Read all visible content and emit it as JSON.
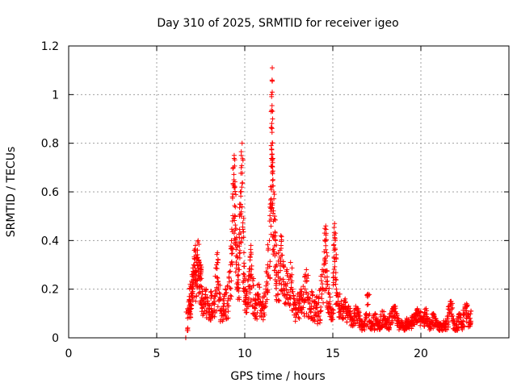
{
  "chart_data": {
    "type": "scatter",
    "title": "Day 310 of 2025, SRMTID for receiver igeo",
    "xlabel": "GPS time / hours",
    "ylabel": "SRMTID / TECUs",
    "xlim": [
      0,
      25
    ],
    "ylim": [
      0,
      1.2
    ],
    "xticks": [
      0,
      5,
      10,
      15,
      20
    ],
    "yticks": [
      0,
      0.2,
      0.4,
      0.6,
      0.8,
      1,
      1.2
    ],
    "xtick_labels": [
      "0",
      "5",
      "10",
      "15",
      "20"
    ],
    "ytick_labels": [
      "0",
      "0.2",
      "0.4",
      "0.6",
      "0.8",
      "1",
      "1.2"
    ],
    "grid": true,
    "series": [
      {
        "name": "SRMTID",
        "color": "#ff0000",
        "marker": "plus",
        "x_range": [
          6.6,
          22.9
        ],
        "points": [
          [
            6.65,
            0.0
          ],
          [
            6.65,
            0.0
          ],
          [
            6.8,
            0.12
          ],
          [
            6.85,
            0.17
          ],
          [
            6.9,
            0.22
          ],
          [
            6.95,
            0.15
          ],
          [
            7.0,
            0.26
          ],
          [
            7.05,
            0.19
          ],
          [
            7.1,
            0.3
          ],
          [
            7.15,
            0.36
          ],
          [
            7.2,
            0.38
          ],
          [
            7.25,
            0.27
          ],
          [
            7.3,
            0.33
          ],
          [
            7.35,
            0.4
          ],
          [
            7.4,
            0.32
          ],
          [
            7.45,
            0.25
          ],
          [
            7.5,
            0.3
          ],
          [
            7.55,
            0.21
          ],
          [
            7.6,
            0.18
          ],
          [
            7.7,
            0.16
          ],
          [
            7.8,
            0.2
          ],
          [
            7.9,
            0.15
          ],
          [
            8.0,
            0.12
          ],
          [
            8.1,
            0.19
          ],
          [
            8.2,
            0.14
          ],
          [
            8.3,
            0.17
          ],
          [
            8.4,
            0.3
          ],
          [
            8.45,
            0.35
          ],
          [
            8.5,
            0.22
          ],
          [
            8.6,
            0.18
          ],
          [
            8.7,
            0.12
          ],
          [
            8.8,
            0.16
          ],
          [
            8.9,
            0.2
          ],
          [
            9.0,
            0.14
          ],
          [
            9.1,
            0.25
          ],
          [
            9.2,
            0.3
          ],
          [
            9.25,
            0.4
          ],
          [
            9.3,
            0.58
          ],
          [
            9.35,
            0.7
          ],
          [
            9.4,
            0.75
          ],
          [
            9.45,
            0.62
          ],
          [
            9.5,
            0.45
          ],
          [
            9.55,
            0.38
          ],
          [
            9.6,
            0.33
          ],
          [
            9.65,
            0.28
          ],
          [
            9.7,
            0.5
          ],
          [
            9.75,
            0.6
          ],
          [
            9.8,
            0.7
          ],
          [
            9.85,
            0.8
          ],
          [
            9.9,
            0.73
          ],
          [
            9.95,
            0.35
          ],
          [
            10.0,
            0.25
          ],
          [
            10.05,
            0.2
          ],
          [
            10.1,
            0.18
          ],
          [
            10.2,
            0.24
          ],
          [
            10.3,
            0.32
          ],
          [
            10.35,
            0.38
          ],
          [
            10.4,
            0.25
          ],
          [
            10.5,
            0.16
          ],
          [
            10.6,
            0.12
          ],
          [
            10.7,
            0.18
          ],
          [
            10.8,
            0.22
          ],
          [
            10.9,
            0.15
          ],
          [
            11.0,
            0.12
          ],
          [
            11.1,
            0.17
          ],
          [
            11.2,
            0.2
          ],
          [
            11.3,
            0.3
          ],
          [
            11.4,
            0.4
          ],
          [
            11.45,
            0.55
          ],
          [
            11.5,
            0.79
          ],
          [
            11.5,
            0.93
          ],
          [
            11.52,
            1.0
          ],
          [
            11.55,
            1.06
          ],
          [
            11.56,
            1.11
          ],
          [
            11.58,
            0.9
          ],
          [
            11.6,
            0.65
          ],
          [
            11.65,
            0.6
          ],
          [
            11.7,
            0.5
          ],
          [
            11.75,
            0.4
          ],
          [
            11.8,
            0.3
          ],
          [
            11.9,
            0.27
          ],
          [
            12.0,
            0.36
          ],
          [
            12.05,
            0.42
          ],
          [
            12.1,
            0.34
          ],
          [
            12.2,
            0.3
          ],
          [
            12.3,
            0.22
          ],
          [
            12.4,
            0.28
          ],
          [
            12.5,
            0.24
          ],
          [
            12.6,
            0.31
          ],
          [
            12.7,
            0.2
          ],
          [
            12.8,
            0.16
          ],
          [
            12.9,
            0.12
          ],
          [
            13.0,
            0.18
          ],
          [
            13.1,
            0.14
          ],
          [
            13.2,
            0.2
          ],
          [
            13.3,
            0.16
          ],
          [
            13.4,
            0.25
          ],
          [
            13.5,
            0.28
          ],
          [
            13.6,
            0.18
          ],
          [
            13.7,
            0.14
          ],
          [
            13.8,
            0.19
          ],
          [
            13.9,
            0.12
          ],
          [
            14.0,
            0.15
          ],
          [
            14.1,
            0.17
          ],
          [
            14.2,
            0.1
          ],
          [
            14.3,
            0.2
          ],
          [
            14.4,
            0.26
          ],
          [
            14.5,
            0.3
          ],
          [
            14.55,
            0.45
          ],
          [
            14.6,
            0.46
          ],
          [
            14.65,
            0.35
          ],
          [
            14.7,
            0.22
          ],
          [
            14.8,
            0.18
          ],
          [
            14.9,
            0.12
          ],
          [
            15.0,
            0.1
          ],
          [
            15.05,
            0.38
          ],
          [
            15.1,
            0.47
          ],
          [
            15.15,
            0.43
          ],
          [
            15.2,
            0.2
          ],
          [
            15.3,
            0.15
          ],
          [
            15.4,
            0.18
          ],
          [
            15.5,
            0.13
          ],
          [
            15.6,
            0.12
          ],
          [
            15.7,
            0.16
          ],
          [
            15.8,
            0.1
          ],
          [
            15.9,
            0.13
          ],
          [
            16.0,
            0.11
          ],
          [
            16.1,
            0.08
          ],
          [
            16.2,
            0.1
          ],
          [
            16.3,
            0.13
          ],
          [
            16.4,
            0.12
          ],
          [
            16.5,
            0.09
          ],
          [
            16.6,
            0.07
          ],
          [
            16.7,
            0.05
          ],
          [
            16.8,
            0.06
          ],
          [
            16.9,
            0.1
          ],
          [
            17.0,
            0.18
          ],
          [
            17.1,
            0.07
          ],
          [
            17.2,
            0.06
          ],
          [
            17.3,
            0.05
          ],
          [
            17.4,
            0.1
          ],
          [
            17.5,
            0.08
          ],
          [
            17.6,
            0.06
          ],
          [
            17.7,
            0.07
          ],
          [
            17.8,
            0.11
          ],
          [
            17.9,
            0.09
          ],
          [
            18.0,
            0.07
          ],
          [
            18.1,
            0.08
          ],
          [
            18.2,
            0.06
          ],
          [
            18.3,
            0.1
          ],
          [
            18.4,
            0.12
          ],
          [
            18.5,
            0.13
          ],
          [
            18.6,
            0.1
          ],
          [
            18.7,
            0.08
          ],
          [
            18.8,
            0.06
          ],
          [
            18.9,
            0.07
          ],
          [
            19.0,
            0.05
          ],
          [
            19.1,
            0.06
          ],
          [
            19.2,
            0.08
          ],
          [
            19.3,
            0.07
          ],
          [
            19.4,
            0.06
          ],
          [
            19.5,
            0.09
          ],
          [
            19.6,
            0.08
          ],
          [
            19.7,
            0.1
          ],
          [
            19.8,
            0.12
          ],
          [
            19.9,
            0.11
          ],
          [
            20.0,
            0.09
          ],
          [
            20.1,
            0.08
          ],
          [
            20.2,
            0.1
          ],
          [
            20.3,
            0.12
          ],
          [
            20.4,
            0.08
          ],
          [
            20.5,
            0.06
          ],
          [
            20.6,
            0.07
          ],
          [
            20.7,
            0.1
          ],
          [
            20.8,
            0.08
          ],
          [
            20.9,
            0.07
          ],
          [
            21.0,
            0.05
          ],
          [
            21.1,
            0.06
          ],
          [
            21.2,
            0.05
          ],
          [
            21.3,
            0.07
          ],
          [
            21.4,
            0.06
          ],
          [
            21.5,
            0.08
          ],
          [
            21.6,
            0.13
          ],
          [
            21.7,
            0.15
          ],
          [
            21.8,
            0.09
          ],
          [
            21.9,
            0.06
          ],
          [
            22.0,
            0.05
          ],
          [
            22.1,
            0.08
          ],
          [
            22.2,
            0.1
          ],
          [
            22.3,
            0.06
          ],
          [
            22.4,
            0.07
          ],
          [
            22.5,
            0.12
          ],
          [
            22.6,
            0.14
          ],
          [
            22.7,
            0.1
          ],
          [
            22.8,
            0.08
          ],
          [
            22.85,
            0.11
          ]
        ]
      }
    ]
  }
}
